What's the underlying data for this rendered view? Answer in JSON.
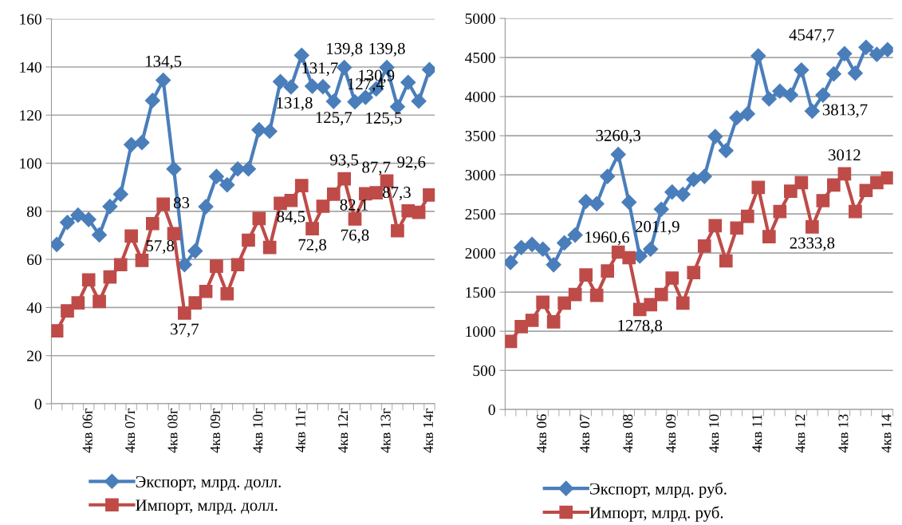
{
  "chart_data": [
    {
      "type": "line",
      "categories": [
        null,
        null,
        null,
        "4кв 06г",
        null,
        null,
        null,
        "4кв 07г",
        null,
        null,
        null,
        "4кв 08г",
        null,
        null,
        null,
        "4кв 09г",
        null,
        null,
        null,
        "4кв 10г",
        null,
        null,
        null,
        "4кв 11г",
        null,
        null,
        null,
        "4кв 12г",
        null,
        null,
        null,
        "4кв 13г",
        null,
        null,
        null,
        "4кв 14г"
      ],
      "series": [
        {
          "name": "Экспорт, млрд. долл.",
          "color": "#4a7ebb",
          "marker": "diamond",
          "values": [
            66.2,
            75.4,
            78.4,
            76.6,
            70.2,
            82,
            87.1,
            107.7,
            108.6,
            126.1,
            134.5,
            97.6,
            57.8,
            63.5,
            81.9,
            94.5,
            91,
            97.6,
            97.6,
            113.9,
            113.3,
            133.9,
            131.7,
            144.9,
            132,
            131.8,
            125.7,
            139.8,
            125.5,
            127.4,
            130.9,
            139.8,
            123.5,
            133.6,
            125.8,
            138.9
          ],
          "value_labels": [
            null,
            null,
            null,
            null,
            null,
            null,
            null,
            null,
            null,
            null,
            "134,5",
            null,
            "57,8",
            null,
            null,
            null,
            null,
            null,
            null,
            null,
            null,
            null,
            "131,7",
            null,
            null,
            "131,8",
            "125,7",
            "139,8",
            "125,5",
            "127,4",
            "130,9",
            "139,8",
            null,
            null,
            null,
            null
          ]
        },
        {
          "name": "Импорт, млрд. долл.",
          "color": "#be4b48",
          "marker": "square",
          "values": [
            30.3,
            38.6,
            41.9,
            51.5,
            42.5,
            52.7,
            57.8,
            69.7,
            59.6,
            74.9,
            83,
            70.7,
            37.7,
            41.9,
            46.7,
            57.2,
            45.7,
            57.8,
            68,
            77,
            65,
            83.3,
            84.5,
            90.7,
            72.8,
            82.1,
            87.1,
            93.5,
            76.8,
            87.3,
            87.7,
            92.6,
            71.9,
            80.2,
            79.6,
            86.8
          ],
          "value_labels": [
            null,
            null,
            null,
            null,
            null,
            null,
            null,
            null,
            null,
            null,
            "83",
            null,
            "37,7",
            null,
            null,
            null,
            null,
            null,
            null,
            null,
            null,
            null,
            "84,5",
            null,
            "72,8",
            "82,1",
            null,
            "93,5",
            "76,8",
            "87,3",
            "87,7",
            "92,6",
            null,
            null,
            null,
            null
          ]
        }
      ],
      "ylim": [
        0,
        160
      ],
      "yticks": [
        0,
        20,
        40,
        60,
        80,
        100,
        120,
        140,
        160
      ],
      "grid": "y",
      "legend": "bottom",
      "line_style": "solid"
    },
    {
      "type": "line",
      "categories": [
        null,
        null,
        null,
        "4кв 06",
        null,
        null,
        null,
        "4кв 07",
        null,
        null,
        null,
        "4кв 08",
        null,
        null,
        null,
        "4кв 09",
        null,
        null,
        null,
        "4кв 10",
        null,
        null,
        null,
        "4кв 11",
        null,
        null,
        null,
        "4кв 12",
        null,
        null,
        null,
        "4кв 13",
        null,
        null,
        null,
        "4кв 14"
      ],
      "series": [
        {
          "name": "Экспорт, млрд. руб.",
          "color": "#4a7ebb",
          "marker": "diamond",
          "values": [
            1880,
            2070,
            2110,
            2050,
            1850,
            2130,
            2230,
            2660,
            2630,
            2980,
            3260.3,
            2650,
            1960.6,
            2050,
            2560,
            2780,
            2750,
            2940,
            2980,
            3490,
            3310,
            3730,
            3780,
            4520,
            3970,
            4070,
            4020,
            4340,
            3813.7,
            4020,
            4290,
            4547.7,
            4300,
            4630,
            4540,
            4600
          ],
          "value_labels": [
            null,
            null,
            null,
            null,
            null,
            null,
            null,
            null,
            null,
            null,
            "3260,3",
            null,
            "1960,6",
            null,
            null,
            null,
            null,
            null,
            null,
            null,
            null,
            null,
            null,
            null,
            null,
            null,
            null,
            null,
            "3813,7",
            null,
            null,
            "4547,7",
            null,
            null,
            null,
            null
          ]
        },
        {
          "name": "Импорт, млрд. руб.",
          "color": "#be4b48",
          "marker": "square",
          "values": [
            870,
            1060,
            1140,
            1370,
            1120,
            1360,
            1470,
            1720,
            1460,
            1770,
            2011.9,
            1940,
            1278.8,
            1340,
            1470,
            1680,
            1360,
            1750,
            2090,
            2350,
            1900,
            2320,
            2470,
            2840,
            2210,
            2530,
            2790,
            2900,
            2333.8,
            2670,
            2870,
            3012,
            2530,
            2800,
            2900,
            2960
          ],
          "value_labels": [
            null,
            null,
            null,
            null,
            null,
            null,
            null,
            null,
            null,
            null,
            "2011,9",
            null,
            "1278,8",
            null,
            null,
            null,
            null,
            null,
            null,
            null,
            null,
            null,
            null,
            null,
            null,
            null,
            null,
            null,
            "2333,8",
            null,
            null,
            "3012",
            null,
            null,
            null,
            null
          ]
        }
      ],
      "ylim": [
        0,
        5000
      ],
      "yticks": [
        0,
        500,
        1000,
        1500,
        2000,
        2500,
        3000,
        3500,
        4000,
        4500,
        5000
      ],
      "grid": "y",
      "legend": "bottom",
      "line_style": "solid"
    }
  ]
}
